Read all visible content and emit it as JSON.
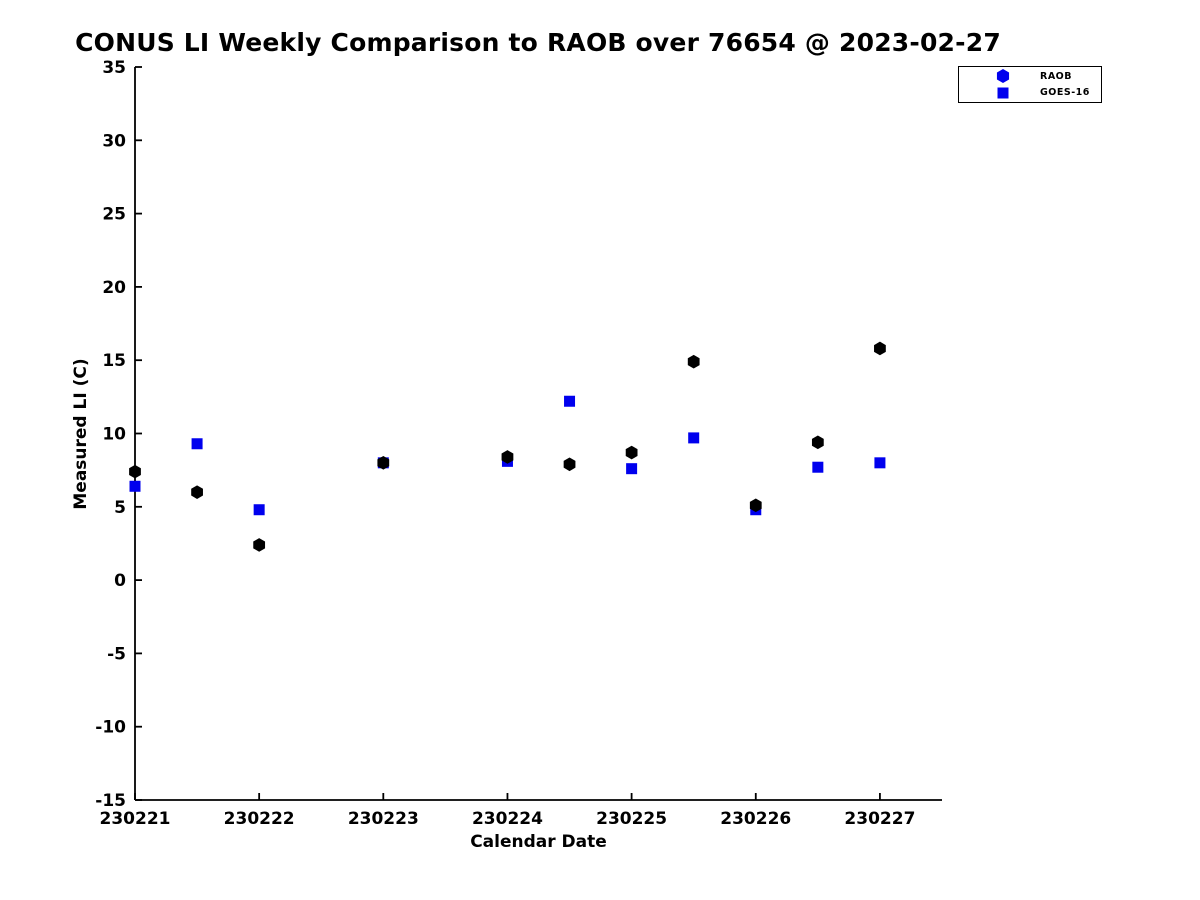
{
  "chart_data": {
    "type": "scatter",
    "title": "CONUS LI Weekly Comparison to RAOB over 76654 @ 2023-02-27",
    "xlabel": "Calendar Date",
    "ylabel": "Measured LI (C)",
    "xlim": [
      230221,
      230227.5
    ],
    "ylim": [
      -15,
      35
    ],
    "xticks": [
      230221,
      230222,
      230223,
      230224,
      230225,
      230226,
      230227
    ],
    "xtick_labels": [
      "230221",
      "230222",
      "230223",
      "230224",
      "230225",
      "230226",
      "230227"
    ],
    "yticks": [
      35,
      30,
      25,
      20,
      15,
      10,
      5,
      0,
      -5,
      -10,
      -15
    ],
    "ytick_labels": [
      "35",
      "30",
      "25",
      "20",
      "15",
      "10",
      "5",
      "0",
      "-5",
      "-10",
      "-15"
    ],
    "grid": false,
    "background": "#ffffff",
    "axis_color": "#000000",
    "legend": {
      "position": "top-right",
      "entries": [
        {
          "label": "RAOB",
          "marker": "hexagon",
          "color": "#0000ee"
        },
        {
          "label": "GOES-16",
          "marker": "square",
          "color": "#0000ee"
        }
      ]
    },
    "series": [
      {
        "name": "RAOB",
        "marker": "hexagon",
        "color": "#000000",
        "x": [
          230221,
          230221.5,
          230222,
          230223,
          230224,
          230224.5,
          230225,
          230225.5,
          230226,
          230226.5,
          230227
        ],
        "y": [
          7.4,
          6.0,
          2.4,
          8.0,
          8.4,
          7.9,
          8.7,
          14.9,
          5.1,
          9.4,
          15.8
        ]
      },
      {
        "name": "GOES-16",
        "marker": "square",
        "color": "#0000ee",
        "x": [
          230221,
          230221.5,
          230222,
          230223,
          230224,
          230224.5,
          230225,
          230225.5,
          230226,
          230226.5,
          230227
        ],
        "y": [
          6.4,
          9.3,
          4.8,
          8.0,
          8.1,
          12.2,
          7.6,
          9.7,
          4.8,
          7.7,
          8.0
        ]
      }
    ]
  }
}
